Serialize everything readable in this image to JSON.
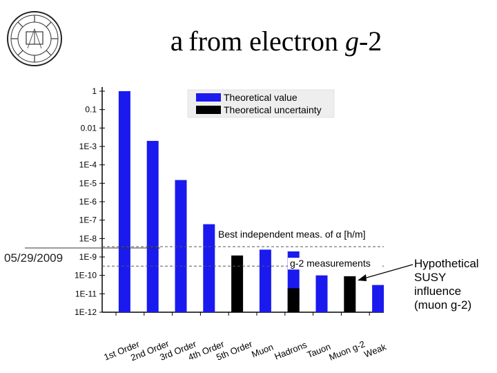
{
  "slide": {
    "title_symbol": "a",
    "title_from": "from electron ",
    "title_g": "g",
    "title_suffix": "-2",
    "date": "05/29/2009",
    "annotation_lines": [
      "Hypothetical",
      "SUSY",
      "influence",
      "(muon g-2)"
    ],
    "seal_icon": "university-seal-icon"
  },
  "chart_data": {
    "type": "bar",
    "yscale": "log",
    "ylim": [
      1e-12,
      1
    ],
    "ytick_labels": [
      "1",
      "0.1",
      "0.01",
      "1E-3",
      "1E-4",
      "1E-5",
      "1E-6",
      "1E-7",
      "1E-8",
      "1E-9",
      "1E-10",
      "1E-11",
      "1E-12"
    ],
    "categories": [
      "1st Order",
      "2nd Order",
      "3rd Order",
      "4th Order",
      "5th Order",
      "Muon",
      "Hadrons",
      "Tauon",
      "Muon g-2",
      "Weak"
    ],
    "series": [
      {
        "name": "Theoretical value",
        "color": "#1a1aee",
        "values": [
          1,
          0.002,
          1.5e-05,
          6e-08,
          null,
          2.5e-09,
          2e-09,
          1e-10,
          null,
          3e-11
        ]
      },
      {
        "name": "Theoretical uncertainty",
        "color": "#000000",
        "values": [
          null,
          null,
          null,
          null,
          1.2e-09,
          null,
          2e-11,
          null,
          9e-11,
          null
        ]
      }
    ],
    "reference_lines": [
      {
        "label": "Best independent meas. of α [h/m]",
        "value": 3.6e-09
      },
      {
        "label": "g-2 measurements",
        "value": 3.2e-10
      }
    ],
    "legend_position": "top-right"
  }
}
